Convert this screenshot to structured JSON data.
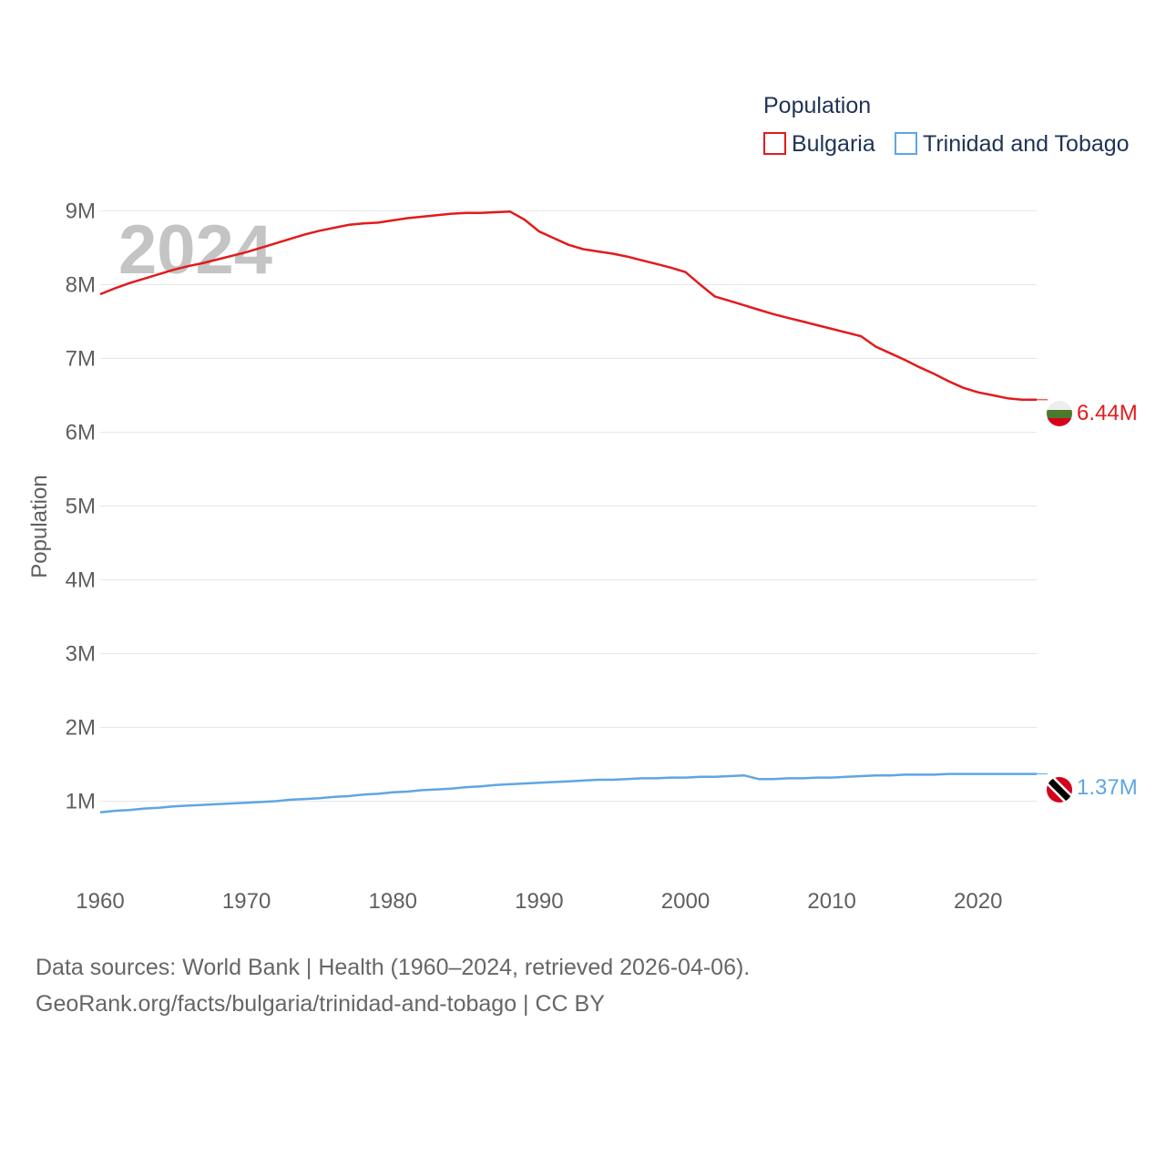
{
  "chart_data": {
    "type": "line",
    "legend_title": "Population",
    "year_label": "2024",
    "ylabel": "Population",
    "xlim": [
      1960,
      2024
    ],
    "ylim": [
      0.55,
      9.4
    ],
    "x_ticks": [
      1960,
      1970,
      1980,
      1990,
      2000,
      2010,
      2020
    ],
    "x_tick_labels": [
      "1960",
      "1970",
      "1980",
      "1990",
      "2000",
      "2010",
      "2020"
    ],
    "y_ticks": [
      1,
      2,
      3,
      4,
      5,
      6,
      7,
      8,
      9
    ],
    "y_tick_labels": [
      "1M",
      "2M",
      "3M",
      "4M",
      "5M",
      "6M",
      "7M",
      "8M",
      "9M"
    ],
    "grid": true,
    "legend_position": "top-right",
    "x": [
      1960,
      1961,
      1962,
      1963,
      1964,
      1965,
      1966,
      1967,
      1968,
      1969,
      1970,
      1971,
      1972,
      1973,
      1974,
      1975,
      1976,
      1977,
      1978,
      1979,
      1980,
      1981,
      1982,
      1983,
      1984,
      1985,
      1986,
      1987,
      1988,
      1989,
      1990,
      1991,
      1992,
      1993,
      1994,
      1995,
      1996,
      1997,
      1998,
      1999,
      2000,
      2001,
      2002,
      2003,
      2004,
      2005,
      2006,
      2007,
      2008,
      2009,
      2010,
      2011,
      2012,
      2013,
      2014,
      2015,
      2016,
      2017,
      2018,
      2019,
      2020,
      2021,
      2022,
      2023,
      2024
    ],
    "series": [
      {
        "name": "Bulgaria",
        "color": "#e31a1c",
        "end_label": "6.44M",
        "values": [
          7.87,
          7.95,
          8.02,
          8.08,
          8.14,
          8.2,
          8.25,
          8.29,
          8.34,
          8.39,
          8.44,
          8.5,
          8.56,
          8.62,
          8.68,
          8.73,
          8.77,
          8.81,
          8.83,
          8.84,
          8.87,
          8.9,
          8.92,
          8.94,
          8.96,
          8.97,
          8.97,
          8.98,
          8.99,
          8.88,
          8.72,
          8.63,
          8.54,
          8.48,
          8.45,
          8.42,
          8.38,
          8.33,
          8.28,
          8.23,
          8.17,
          8.0,
          7.84,
          7.78,
          7.72,
          7.66,
          7.6,
          7.55,
          7.5,
          7.45,
          7.4,
          7.35,
          7.3,
          7.16,
          7.07,
          6.98,
          6.88,
          6.79,
          6.69,
          6.6,
          6.54,
          6.5,
          6.46,
          6.44,
          6.44
        ]
      },
      {
        "name": "Trinidad and Tobago",
        "color": "#5ea6e3",
        "end_label": "1.37M",
        "values": [
          0.85,
          0.87,
          0.88,
          0.9,
          0.91,
          0.93,
          0.94,
          0.95,
          0.96,
          0.97,
          0.98,
          0.99,
          1.0,
          1.02,
          1.03,
          1.04,
          1.06,
          1.07,
          1.09,
          1.1,
          1.12,
          1.13,
          1.15,
          1.16,
          1.17,
          1.19,
          1.2,
          1.22,
          1.23,
          1.24,
          1.25,
          1.26,
          1.27,
          1.28,
          1.29,
          1.29,
          1.3,
          1.31,
          1.31,
          1.32,
          1.32,
          1.33,
          1.33,
          1.34,
          1.35,
          1.3,
          1.3,
          1.31,
          1.31,
          1.32,
          1.32,
          1.33,
          1.34,
          1.35,
          1.35,
          1.36,
          1.36,
          1.36,
          1.37,
          1.37,
          1.37,
          1.37,
          1.37,
          1.37,
          1.37
        ]
      }
    ]
  },
  "source": {
    "line1": "Data sources: World Bank | Health (1960–2024, retrieved 2026-04-06).",
    "line2": "GeoRank.org/facts/bulgaria/trinidad-and-tobago | CC BY"
  },
  "flags": {
    "bulgaria": {
      "icon": "bulgaria-flag-icon",
      "colors": [
        "#eeeeee",
        "#4b7a2c",
        "#d6001c"
      ]
    },
    "trinidad": {
      "icon": "trinidad-and-tobago-flag-icon",
      "colors": [
        "#d6001c",
        "#ffffff",
        "#000000"
      ]
    }
  }
}
